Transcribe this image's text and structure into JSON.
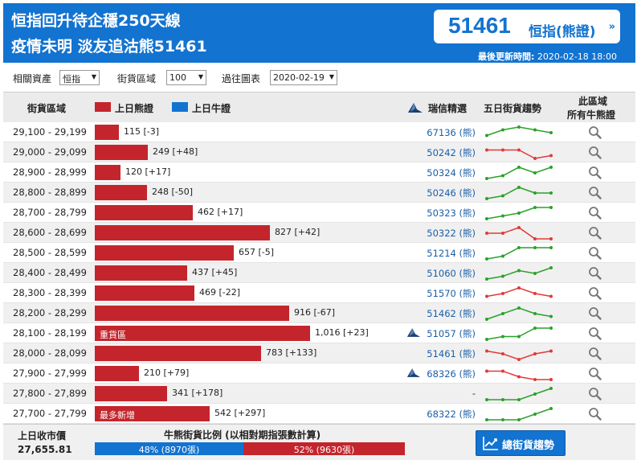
{
  "header": {
    "headline_1": "恒指回升待企穩250天線",
    "headline_2": "疫情未明 淡友追沽熊51461",
    "stock_code": "51461",
    "stock_name": "恒指(熊證)",
    "updated_label": "最後更新時間:",
    "updated_value": "2020-02-18 18:00"
  },
  "filters": {
    "asset_label": "相關資產",
    "asset_value": "恒指",
    "zone_label": "街貨區域",
    "zone_value": "100",
    "past_label": "過往圖表",
    "past_value": "2020-02-19"
  },
  "table_header": {
    "zone": "街貨區域",
    "bear_legend": "上日熊證",
    "bull_legend": "上日牛證",
    "featured": "瑞信精選",
    "trend": "五日街貨趨勢",
    "all_line1": "此區域",
    "all_line2": "所有牛熊證"
  },
  "colors": {
    "brand": "#1273d0",
    "bear": "#c4252c",
    "bull": "#1273d0",
    "trend_up": "#2aa12a",
    "trend_down": "#e03a3a"
  },
  "rows": [
    {
      "range": "29,100 - 29,199",
      "value": 115,
      "value_text": "115 [-3]",
      "code": "67136 (熊)",
      "featured": false,
      "trend_color": "green",
      "trend": [
        2,
        4,
        5,
        4,
        3
      ]
    },
    {
      "range": "29,000 - 29,099",
      "value": 249,
      "value_text": "249 [+48]",
      "code": "50242 (熊)",
      "featured": false,
      "trend_color": "red",
      "trend": [
        4,
        4,
        4,
        1,
        2
      ]
    },
    {
      "range": "28,900 - 28,999",
      "value": 120,
      "value_text": "120 [+17]",
      "code": "50324 (熊)",
      "featured": false,
      "trend_color": "green",
      "trend": [
        1,
        2,
        5,
        3,
        5
      ]
    },
    {
      "range": "28,800 - 28,899",
      "value": 248,
      "value_text": "248 [-50]",
      "code": "50246 (熊)",
      "featured": false,
      "trend_color": "green",
      "trend": [
        1,
        2,
        5,
        3,
        3
      ]
    },
    {
      "range": "28,700 - 28,799",
      "value": 462,
      "value_text": "462 [+17]",
      "code": "50323 (熊)",
      "featured": false,
      "trend_color": "green",
      "trend": [
        1,
        2,
        3,
        5,
        5
      ]
    },
    {
      "range": "28,600 - 28,699",
      "value": 827,
      "value_text": "827 [+42]",
      "code": "50322 (熊)",
      "featured": false,
      "trend_color": "red",
      "trend": [
        3,
        3,
        5,
        1,
        1
      ]
    },
    {
      "range": "28,500 - 28,599",
      "value": 657,
      "value_text": "657 [-5]",
      "code": "51214 (熊)",
      "featured": false,
      "trend_color": "green",
      "trend": [
        1,
        2,
        5,
        5,
        5
      ]
    },
    {
      "range": "28,400 - 28,499",
      "value": 437,
      "value_text": "437 [+45]",
      "code": "51060 (熊)",
      "featured": false,
      "trend_color": "green",
      "trend": [
        1,
        2,
        4,
        3,
        5
      ]
    },
    {
      "range": "28,300 - 28,399",
      "value": 469,
      "value_text": "469 [-22]",
      "code": "51570 (熊)",
      "featured": false,
      "trend_color": "red",
      "trend": [
        2,
        3,
        5,
        3,
        2
      ]
    },
    {
      "range": "28,200 - 28,299",
      "value": 916,
      "value_text": "916 [-67]",
      "code": "51462 (熊)",
      "featured": false,
      "trend_color": "green",
      "trend": [
        1,
        3,
        5,
        3,
        2
      ]
    },
    {
      "range": "28,100 - 28,199",
      "value": 1016,
      "value_text": "1,016 [+23]",
      "label": "重貨區",
      "code": "51057 (熊)",
      "featured": true,
      "trend_color": "green",
      "trend": [
        1,
        2,
        2,
        5,
        5
      ]
    },
    {
      "range": "28,000 - 28,099",
      "value": 783,
      "value_text": "783 [+133]",
      "code": "51461 (熊)",
      "featured": false,
      "trend_color": "red",
      "trend": [
        4,
        3,
        1,
        3,
        4
      ]
    },
    {
      "range": "27,900 - 27,999",
      "value": 210,
      "value_text": "210 [+79]",
      "code": "68326 (熊)",
      "featured": true,
      "trend_color": "red",
      "trend": [
        4,
        4,
        2,
        1,
        1
      ]
    },
    {
      "range": "27,800 - 27,899",
      "value": 341,
      "value_text": "341 [+178]",
      "code": "-",
      "featured": false,
      "trend_color": "green",
      "trend": [
        1,
        1,
        1,
        3,
        5
      ]
    },
    {
      "range": "27,700 - 27,799",
      "value": 542,
      "value_text": "542 [+297]",
      "label": "最多新增",
      "code": "68322 (熊)",
      "featured": false,
      "trend_color": "green",
      "trend": [
        1,
        1,
        1,
        3,
        5
      ]
    }
  ],
  "footer": {
    "prev_close_label": "上日收市價",
    "prev_close_value": "27,655.81",
    "ratio_title": "牛熊街貨比例 (以相對期指張數計算)",
    "bull_pct": 48,
    "bull_text": "48% (8970張)",
    "bear_pct": 52,
    "bear_text": "52% (9630張)",
    "trend_button": "總街貨趨勢"
  }
}
